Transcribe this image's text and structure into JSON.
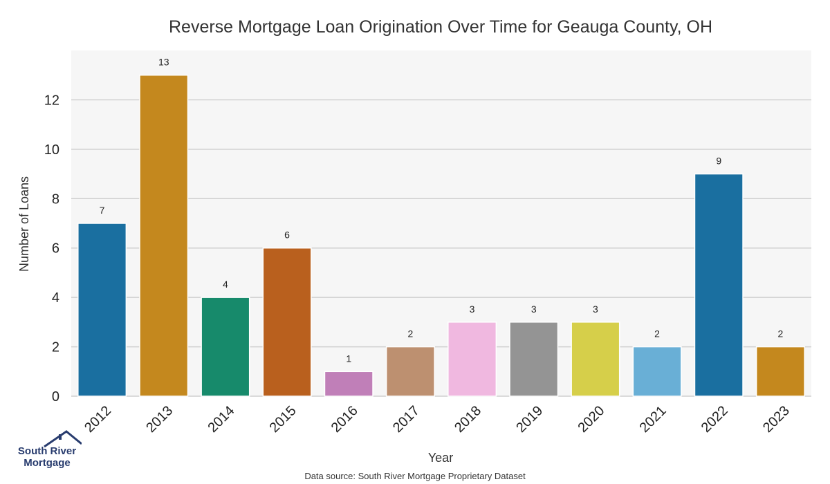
{
  "chart_data": {
    "type": "bar",
    "title": "Reverse Mortgage Loan Origination Over Time for Geauga County, OH",
    "xlabel": "Year",
    "ylabel": "Number of Loans",
    "categories": [
      "2012",
      "2013",
      "2014",
      "2015",
      "2016",
      "2017",
      "2018",
      "2019",
      "2020",
      "2021",
      "2022",
      "2023"
    ],
    "values": [
      7,
      13,
      4,
      6,
      1,
      2,
      3,
      3,
      3,
      2,
      9,
      2
    ],
    "data_labels": [
      "7",
      "13",
      "4",
      "6",
      "1",
      "2",
      "3",
      "3",
      "3",
      "2",
      "9",
      "2"
    ],
    "colors": [
      "#1a6fa0",
      "#c4881e",
      "#178a6b",
      "#b9601e",
      "#c07fb8",
      "#bd9070",
      "#f0b8e0",
      "#949494",
      "#d6cf4a",
      "#69afd6",
      "#1a6fa0",
      "#c4881e"
    ],
    "ylim": [
      0,
      14
    ],
    "yticks": [
      0,
      2,
      4,
      6,
      8,
      10,
      12
    ],
    "grid": true,
    "plot_background": "#f6f6f6",
    "source": "Data source: South River Mortgage Proprietary Dataset"
  },
  "logo": {
    "line1": "South River",
    "line2": "Mortgage",
    "color": "#283c6e"
  }
}
